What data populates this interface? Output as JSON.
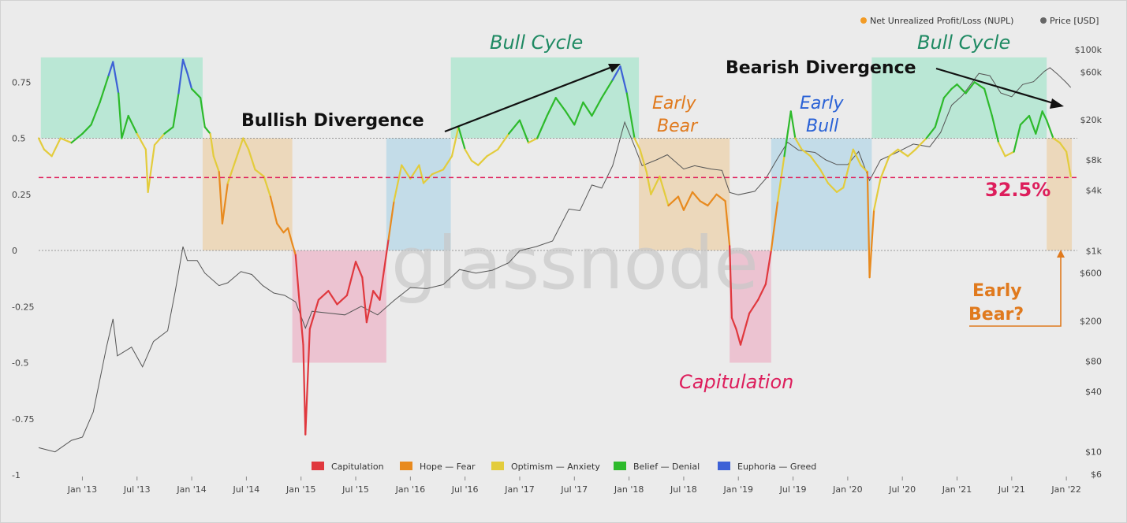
{
  "chart_data": {
    "type": "line",
    "title": "",
    "watermark": "glassnode",
    "legend_top": [
      {
        "label": "Net Unrealized Profit/Loss (NUPL)",
        "color": "#f29b25"
      },
      {
        "label": "Price [USD]",
        "color": "#666666"
      }
    ],
    "legend_bottom": [
      {
        "label": "Capitulation",
        "color": "#e0383e"
      },
      {
        "label": "Hope — Fear",
        "color": "#e88a1e"
      },
      {
        "label": "Optimism — Anxiety",
        "color": "#e3cc3c"
      },
      {
        "label": "Belief — Denial",
        "color": "#2dba2b"
      },
      {
        "label": "Euphoria — Greed",
        "color": "#3d61d6"
      }
    ],
    "x_ticks": [
      "Jan '13",
      "Jul '13",
      "Jan '14",
      "Jul '14",
      "Jan '15",
      "Jul '15",
      "Jan '16",
      "Jul '16",
      "Jan '17",
      "Jul '17",
      "Jan '18",
      "Jul '18",
      "Jan '19",
      "Jul '19",
      "Jan '20",
      "Jul '20",
      "Jan '21",
      "Jul '21",
      "Jan '22"
    ],
    "x_range": [
      2012.6,
      2022.1
    ],
    "y_left": {
      "ticks": [
        "0.75",
        "0.5",
        "0.25",
        "0",
        "-0.25",
        "-0.5",
        "-0.75",
        "-1"
      ],
      "values": [
        0.75,
        0.5,
        0.25,
        0,
        -0.25,
        -0.5,
        -0.75,
        -1
      ],
      "range": [
        -1,
        1
      ]
    },
    "y_right": {
      "ticks": [
        "$100k",
        "$60k",
        "$20k",
        "$8k",
        "$4k",
        "$1k",
        "$600",
        "$200",
        "$80",
        "$40",
        "$10",
        "$6"
      ],
      "values": [
        100000,
        60000,
        20000,
        8000,
        4000,
        1000,
        600,
        200,
        80,
        40,
        10,
        6
      ],
      "scale": "log"
    },
    "reference_line": {
      "y": 0.325,
      "color": "#e0245e",
      "style": "dashed",
      "label": "32.5%"
    },
    "zones": [
      {
        "x0": 2012.62,
        "x1": 2014.1,
        "y0": 0.5,
        "y1": 0.86,
        "color": "#b2e6d1"
      },
      {
        "x0": 2014.1,
        "x1": 2014.92,
        "y0": 0,
        "y1": 0.5,
        "color": "#ecd5b3"
      },
      {
        "x0": 2014.92,
        "x1": 2015.78,
        "y0": -0.5,
        "y1": 0,
        "color": "#ecbccc"
      },
      {
        "x0": 2015.78,
        "x1": 2016.37,
        "y0": 0,
        "y1": 0.5,
        "color": "#bcd9e7"
      },
      {
        "x0": 2016.37,
        "x1": 2018.09,
        "y0": 0.5,
        "y1": 0.86,
        "color": "#b2e6d1"
      },
      {
        "x0": 2018.09,
        "x1": 2018.92,
        "y0": 0,
        "y1": 0.5,
        "color": "#ecd5b3"
      },
      {
        "x0": 2018.92,
        "x1": 2019.3,
        "y0": -0.5,
        "y1": 0,
        "color": "#ecbccc"
      },
      {
        "x0": 2019.3,
        "x1": 2020.22,
        "y0": 0,
        "y1": 0.5,
        "color": "#bcd9e7"
      },
      {
        "x0": 2020.22,
        "x1": 2021.82,
        "y0": 0.5,
        "y1": 0.86,
        "color": "#b2e6d1"
      },
      {
        "x0": 2021.82,
        "x1": 2022.05,
        "y0": 0,
        "y1": 0.5,
        "color": "#ecd5b3"
      }
    ],
    "nupl_series": {
      "name": "Net Unrealized Profit/Loss (NUPL)",
      "points": [
        [
          2012.6,
          0.5
        ],
        [
          2012.65,
          0.45
        ],
        [
          2012.72,
          0.42
        ],
        [
          2012.8,
          0.5
        ],
        [
          2012.9,
          0.48
        ],
        [
          2013.0,
          0.52
        ],
        [
          2013.08,
          0.56
        ],
        [
          2013.16,
          0.66
        ],
        [
          2013.24,
          0.78
        ],
        [
          2013.28,
          0.84
        ],
        [
          2013.33,
          0.7
        ],
        [
          2013.36,
          0.5
        ],
        [
          2013.42,
          0.6
        ],
        [
          2013.5,
          0.52
        ],
        [
          2013.58,
          0.45
        ],
        [
          2013.6,
          0.26
        ],
        [
          2013.66,
          0.47
        ],
        [
          2013.75,
          0.52
        ],
        [
          2013.83,
          0.55
        ],
        [
          2013.88,
          0.7
        ],
        [
          2013.92,
          0.85
        ],
        [
          2013.96,
          0.79
        ],
        [
          2014.0,
          0.72
        ],
        [
          2014.08,
          0.68
        ],
        [
          2014.12,
          0.55
        ],
        [
          2014.17,
          0.52
        ],
        [
          2014.2,
          0.42
        ],
        [
          2014.25,
          0.35
        ],
        [
          2014.28,
          0.12
        ],
        [
          2014.33,
          0.3
        ],
        [
          2014.4,
          0.4
        ],
        [
          2014.47,
          0.5
        ],
        [
          2014.52,
          0.45
        ],
        [
          2014.58,
          0.36
        ],
        [
          2014.66,
          0.33
        ],
        [
          2014.72,
          0.24
        ],
        [
          2014.78,
          0.12
        ],
        [
          2014.84,
          0.08
        ],
        [
          2014.88,
          0.1
        ],
        [
          2014.92,
          0.03
        ],
        [
          2014.95,
          -0.02
        ],
        [
          2014.98,
          -0.2
        ],
        [
          2015.02,
          -0.42
        ],
        [
          2015.04,
          -0.82
        ],
        [
          2015.08,
          -0.35
        ],
        [
          2015.16,
          -0.22
        ],
        [
          2015.25,
          -0.18
        ],
        [
          2015.33,
          -0.24
        ],
        [
          2015.42,
          -0.2
        ],
        [
          2015.5,
          -0.05
        ],
        [
          2015.56,
          -0.12
        ],
        [
          2015.6,
          -0.32
        ],
        [
          2015.66,
          -0.18
        ],
        [
          2015.72,
          -0.22
        ],
        [
          2015.8,
          0.05
        ],
        [
          2015.85,
          0.22
        ],
        [
          2015.92,
          0.38
        ],
        [
          2016.0,
          0.32
        ],
        [
          2016.08,
          0.38
        ],
        [
          2016.12,
          0.3
        ],
        [
          2016.2,
          0.34
        ],
        [
          2016.3,
          0.36
        ],
        [
          2016.38,
          0.42
        ],
        [
          2016.44,
          0.55
        ],
        [
          2016.5,
          0.45
        ],
        [
          2016.56,
          0.4
        ],
        [
          2016.62,
          0.38
        ],
        [
          2016.7,
          0.42
        ],
        [
          2016.8,
          0.45
        ],
        [
          2016.9,
          0.52
        ],
        [
          2017.0,
          0.58
        ],
        [
          2017.08,
          0.48
        ],
        [
          2017.16,
          0.5
        ],
        [
          2017.25,
          0.6
        ],
        [
          2017.33,
          0.68
        ],
        [
          2017.42,
          0.62
        ],
        [
          2017.5,
          0.56
        ],
        [
          2017.58,
          0.66
        ],
        [
          2017.66,
          0.6
        ],
        [
          2017.75,
          0.68
        ],
        [
          2017.85,
          0.76
        ],
        [
          2017.92,
          0.82
        ],
        [
          2017.98,
          0.7
        ],
        [
          2018.05,
          0.5
        ],
        [
          2018.1,
          0.45
        ],
        [
          2018.16,
          0.35
        ],
        [
          2018.2,
          0.25
        ],
        [
          2018.28,
          0.33
        ],
        [
          2018.36,
          0.2
        ],
        [
          2018.45,
          0.24
        ],
        [
          2018.5,
          0.18
        ],
        [
          2018.58,
          0.26
        ],
        [
          2018.65,
          0.22
        ],
        [
          2018.72,
          0.2
        ],
        [
          2018.8,
          0.25
        ],
        [
          2018.88,
          0.22
        ],
        [
          2018.92,
          0.02
        ],
        [
          2018.94,
          -0.3
        ],
        [
          2018.98,
          -0.35
        ],
        [
          2019.02,
          -0.42
        ],
        [
          2019.1,
          -0.28
        ],
        [
          2019.18,
          -0.22
        ],
        [
          2019.25,
          -0.15
        ],
        [
          2019.3,
          0.0
        ],
        [
          2019.36,
          0.22
        ],
        [
          2019.42,
          0.42
        ],
        [
          2019.48,
          0.62
        ],
        [
          2019.52,
          0.5
        ],
        [
          2019.58,
          0.45
        ],
        [
          2019.66,
          0.42
        ],
        [
          2019.75,
          0.36
        ],
        [
          2019.82,
          0.3
        ],
        [
          2019.9,
          0.26
        ],
        [
          2019.96,
          0.28
        ],
        [
          2020.05,
          0.45
        ],
        [
          2020.12,
          0.38
        ],
        [
          2020.18,
          0.35
        ],
        [
          2020.2,
          -0.12
        ],
        [
          2020.24,
          0.18
        ],
        [
          2020.3,
          0.32
        ],
        [
          2020.38,
          0.42
        ],
        [
          2020.46,
          0.45
        ],
        [
          2020.55,
          0.42
        ],
        [
          2020.62,
          0.45
        ],
        [
          2020.72,
          0.5
        ],
        [
          2020.8,
          0.55
        ],
        [
          2020.88,
          0.68
        ],
        [
          2020.95,
          0.72
        ],
        [
          2021.0,
          0.74
        ],
        [
          2021.08,
          0.7
        ],
        [
          2021.16,
          0.75
        ],
        [
          2021.25,
          0.72
        ],
        [
          2021.32,
          0.6
        ],
        [
          2021.38,
          0.48
        ],
        [
          2021.44,
          0.42
        ],
        [
          2021.52,
          0.44
        ],
        [
          2021.58,
          0.56
        ],
        [
          2021.66,
          0.6
        ],
        [
          2021.72,
          0.52
        ],
        [
          2021.78,
          0.62
        ],
        [
          2021.82,
          0.58
        ],
        [
          2021.88,
          0.5
        ],
        [
          2021.94,
          0.48
        ],
        [
          2022.0,
          0.44
        ],
        [
          2022.04,
          0.33
        ]
      ]
    },
    "price_series": {
      "name": "Price [USD]",
      "points": [
        [
          2012.6,
          11
        ],
        [
          2012.75,
          10
        ],
        [
          2012.9,
          13
        ],
        [
          2013.0,
          14
        ],
        [
          2013.1,
          25
        ],
        [
          2013.22,
          110
        ],
        [
          2013.28,
          210
        ],
        [
          2013.32,
          90
        ],
        [
          2013.45,
          110
        ],
        [
          2013.55,
          70
        ],
        [
          2013.65,
          125
        ],
        [
          2013.78,
          160
        ],
        [
          2013.85,
          400
        ],
        [
          2013.92,
          1100
        ],
        [
          2013.96,
          800
        ],
        [
          2014.05,
          800
        ],
        [
          2014.12,
          600
        ],
        [
          2014.25,
          450
        ],
        [
          2014.33,
          480
        ],
        [
          2014.45,
          620
        ],
        [
          2014.55,
          580
        ],
        [
          2014.65,
          450
        ],
        [
          2014.75,
          380
        ],
        [
          2014.85,
          360
        ],
        [
          2014.95,
          310
        ],
        [
          2015.04,
          170
        ],
        [
          2015.1,
          250
        ],
        [
          2015.25,
          240
        ],
        [
          2015.4,
          230
        ],
        [
          2015.55,
          280
        ],
        [
          2015.7,
          230
        ],
        [
          2015.85,
          320
        ],
        [
          2016.0,
          430
        ],
        [
          2016.15,
          420
        ],
        [
          2016.3,
          460
        ],
        [
          2016.45,
          650
        ],
        [
          2016.6,
          600
        ],
        [
          2016.75,
          640
        ],
        [
          2016.9,
          760
        ],
        [
          2017.0,
          1000
        ],
        [
          2017.15,
          1100
        ],
        [
          2017.3,
          1250
        ],
        [
          2017.45,
          2600
        ],
        [
          2017.55,
          2500
        ],
        [
          2017.66,
          4500
        ],
        [
          2017.75,
          4200
        ],
        [
          2017.85,
          7000
        ],
        [
          2017.96,
          19000
        ],
        [
          2018.05,
          11000
        ],
        [
          2018.12,
          7000
        ],
        [
          2018.25,
          8000
        ],
        [
          2018.35,
          9000
        ],
        [
          2018.5,
          6500
        ],
        [
          2018.6,
          7000
        ],
        [
          2018.75,
          6500
        ],
        [
          2018.85,
          6300
        ],
        [
          2018.92,
          3800
        ],
        [
          2019.0,
          3600
        ],
        [
          2019.15,
          3900
        ],
        [
          2019.25,
          5200
        ],
        [
          2019.35,
          8000
        ],
        [
          2019.45,
          12000
        ],
        [
          2019.55,
          10000
        ],
        [
          2019.7,
          9500
        ],
        [
          2019.8,
          8000
        ],
        [
          2019.9,
          7200
        ],
        [
          2020.0,
          7200
        ],
        [
          2020.1,
          9700
        ],
        [
          2020.2,
          5000
        ],
        [
          2020.3,
          8000
        ],
        [
          2020.45,
          9500
        ],
        [
          2020.6,
          11500
        ],
        [
          2020.75,
          10800
        ],
        [
          2020.85,
          15000
        ],
        [
          2020.95,
          28000
        ],
        [
          2021.05,
          35000
        ],
        [
          2021.2,
          58000
        ],
        [
          2021.3,
          55000
        ],
        [
          2021.4,
          37000
        ],
        [
          2021.5,
          34000
        ],
        [
          2021.6,
          45000
        ],
        [
          2021.7,
          48000
        ],
        [
          2021.8,
          61000
        ],
        [
          2021.85,
          66000
        ],
        [
          2021.92,
          57000
        ],
        [
          2022.0,
          47000
        ],
        [
          2022.04,
          42000
        ]
      ]
    },
    "annotations": {
      "bull_cycle_1": "Bull Cycle",
      "bull_cycle_2": "Bull Cycle",
      "bullish_divergence": "Bullish Divergence",
      "bearish_divergence": "Bearish Divergence",
      "early_bear_line1": "Early",
      "early_bear_line2": "Bear",
      "early_bull_line1": "Early",
      "early_bull_line2": "Bull",
      "capitulation": "Capitulation",
      "pct": "32.5%",
      "early_bear_q_line1": "Early",
      "early_bear_q_line2": "Bear?"
    }
  }
}
